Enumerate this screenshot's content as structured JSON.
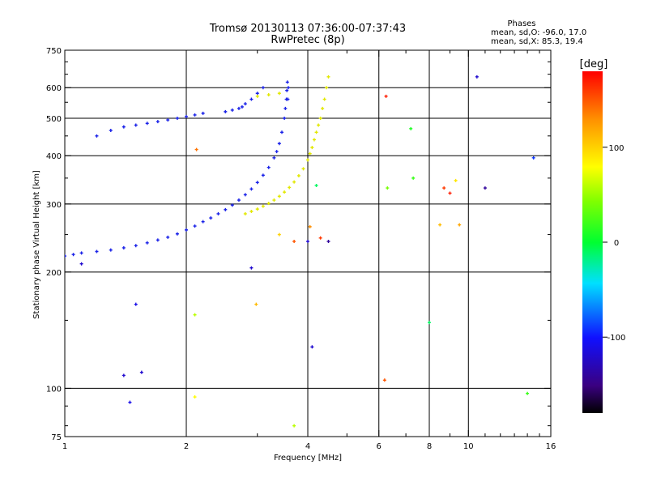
{
  "chart_data": {
    "type": "scatter",
    "title": "Tromsø 20130113 07:36:00-07:37:43",
    "subtitle": "RwPretec (8p)",
    "xlabel": "Frequency [MHz]",
    "ylabel": "Stationary phase Virtual Height [km]",
    "x_scale": "log2",
    "y_scale": "log",
    "xlim": [
      1,
      16
    ],
    "ylim": [
      75,
      750
    ],
    "x_ticks": [
      1,
      2,
      4,
      6,
      8,
      10,
      16
    ],
    "x_tick_labels": [
      "1",
      "2",
      "4",
      "6",
      "8",
      "10",
      "16"
    ],
    "x_minor_ticks": [
      3,
      5,
      7,
      9,
      11,
      12,
      13,
      14,
      15
    ],
    "y_ticks": [
      75,
      100,
      200,
      300,
      400,
      500,
      600,
      750
    ],
    "y_tick_labels": [
      "75",
      "100",
      "200",
      "300",
      "400",
      "500",
      "600",
      "750"
    ],
    "y_minor_ticks": [
      80,
      90,
      150,
      250,
      350,
      450,
      550,
      650,
      700
    ],
    "grid": true,
    "stats": {
      "heading": "Phases",
      "line1": "mean, sd,O: -96.0, 17.0",
      "line2": "mean, sd,X: 85.3, 19.4"
    },
    "colorbar": {
      "label": "[deg]",
      "min": -180,
      "max": 180,
      "ticks": [
        100,
        0,
        -100
      ],
      "tick_labels": [
        "100",
        "0",
        "-100"
      ]
    },
    "point_colors": {
      "o_trace": "#1a22e8",
      "x_trace": "#e2e800"
    },
    "series": [
      {
        "trace": "O",
        "phase": -96,
        "x": [
          1.0,
          1.05,
          1.1,
          1.2,
          1.3,
          1.4,
          1.5,
          1.6,
          1.7,
          1.8,
          1.9,
          2.0,
          2.1,
          2.2,
          2.3,
          2.4,
          2.5,
          2.6,
          2.7,
          2.8,
          2.9,
          3.0,
          3.1,
          3.2,
          3.3,
          3.35,
          3.4,
          3.45,
          3.5,
          3.52,
          3.54,
          3.55,
          3.56,
          3.57,
          3.58,
          1.2,
          1.3,
          1.4,
          1.5,
          1.6,
          1.7,
          1.8,
          1.9,
          2.0,
          2.1,
          2.2,
          2.5,
          2.6,
          2.7,
          2.75,
          2.8,
          2.9,
          3.0,
          3.1
        ],
        "y": [
          220,
          222,
          224,
          226,
          228,
          231,
          234,
          238,
          242,
          246,
          251,
          257,
          263,
          270,
          276,
          283,
          290,
          298,
          307,
          317,
          328,
          341,
          356,
          373,
          395,
          410,
          430,
          460,
          500,
          530,
          560,
          590,
          620,
          560,
          600,
          450,
          465,
          475,
          480,
          485,
          490,
          495,
          500,
          505,
          510,
          515,
          520,
          525,
          530,
          535,
          545,
          560,
          580,
          600
        ]
      },
      {
        "trace": "X",
        "phase": 85,
        "x": [
          2.8,
          2.9,
          3.0,
          3.1,
          3.2,
          3.3,
          3.4,
          3.5,
          3.6,
          3.7,
          3.8,
          3.9,
          4.0,
          4.05,
          4.1,
          4.15,
          4.2,
          4.25,
          4.3,
          4.35,
          4.4,
          4.45,
          4.5,
          3.0,
          3.2,
          3.4
        ],
        "y": [
          283,
          287,
          291,
          296,
          301,
          307,
          314,
          322,
          331,
          342,
          355,
          370,
          390,
          405,
          420,
          440,
          460,
          480,
          500,
          530,
          560,
          600,
          640,
          570,
          575,
          580
        ]
      },
      {
        "trace": "scattered",
        "x": [
          1.1,
          1.5,
          1.4,
          2.1,
          2.1,
          2.12,
          2.9,
          2.98,
          3.4,
          3.7,
          3.7,
          4.0,
          4.05,
          4.1,
          4.2,
          4.3,
          4.5,
          6.2,
          6.25,
          6.3,
          7.2,
          7.3,
          8.0,
          8.5,
          8.7,
          9.0,
          9.3,
          9.5,
          10.5,
          11.0,
          14.5,
          14.0,
          1.55,
          1.45
        ],
        "y": [
          210,
          165,
          108,
          155,
          95,
          415,
          205,
          165,
          250,
          240,
          80,
          240,
          262,
          128,
          335,
          245,
          240,
          105,
          570,
          330,
          470,
          350,
          148,
          265,
          330,
          320,
          345,
          265,
          640,
          330,
          395,
          97,
          110,
          92
        ],
        "phases": [
          -120,
          -110,
          -120,
          60,
          80,
          140,
          -120,
          110,
          100,
          150,
          60,
          -120,
          130,
          -120,
          -10,
          160,
          -140,
          150,
          170,
          40,
          10,
          20,
          -10,
          110,
          160,
          170,
          90,
          120,
          -120,
          -140,
          -90,
          20,
          -120,
          -110
        ]
      }
    ]
  }
}
